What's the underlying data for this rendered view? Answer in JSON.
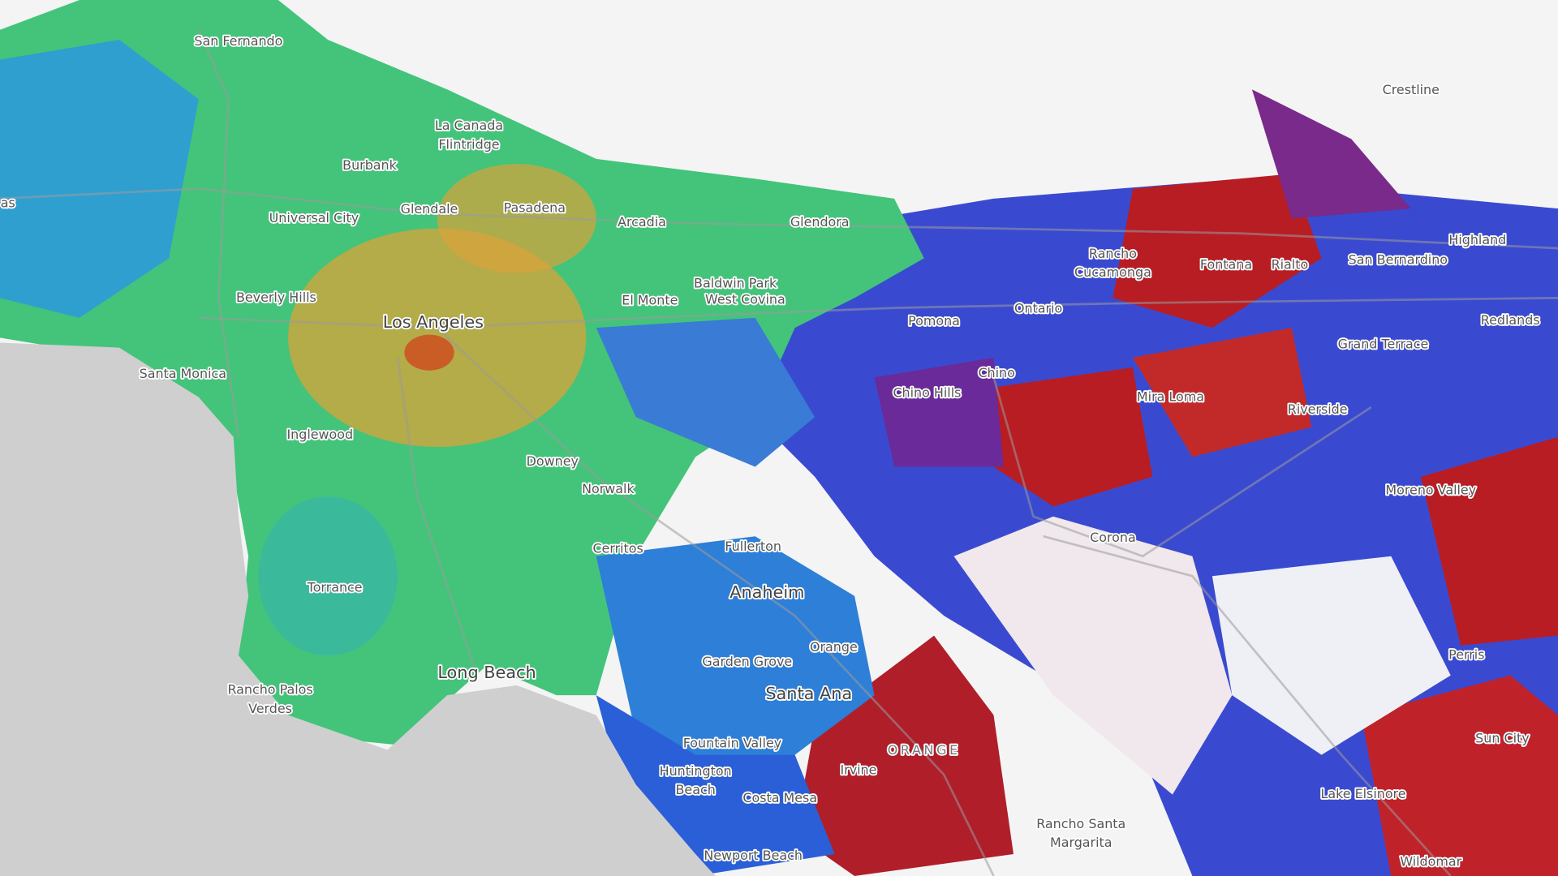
{
  "places": [
    [
      "San Fernando"
    ],
    [
      "Burbank"
    ],
    [
      "La Canada",
      "Flintridge"
    ],
    [
      "Glendale"
    ],
    [
      "Pasadena"
    ],
    [
      "Universal City"
    ],
    [
      "Arcadia"
    ],
    [
      "Glendora"
    ],
    [
      "Beverly Hills"
    ],
    [
      "Los Angeles"
    ],
    [
      "Baldwin Park"
    ],
    [
      "El Monte"
    ],
    [
      "West Covina"
    ],
    [
      "Pomona"
    ],
    [
      "Ontario"
    ],
    [
      "Rancho",
      "Cucamonga"
    ],
    [
      "Fontana"
    ],
    [
      "Rialto"
    ],
    [
      "San Bernardino"
    ],
    [
      "Highland"
    ],
    [
      "Redlands"
    ],
    [
      "Crestline"
    ],
    [
      "Grand Terrace"
    ],
    [
      "Santa Monica"
    ],
    [
      "Chino"
    ],
    [
      "Chino Hills"
    ],
    [
      "Mira Loma"
    ],
    [
      "Riverside"
    ],
    [
      "Inglewood"
    ],
    [
      "Downey"
    ],
    [
      "Norwalk"
    ],
    [
      "Moreno Valley"
    ],
    [
      "Corona"
    ],
    [
      "Cerritos"
    ],
    [
      "Fullerton"
    ],
    [
      "Torrance"
    ],
    [
      "Anaheim"
    ],
    [
      "Orange"
    ],
    [
      "Garden Grove"
    ],
    [
      "Perris"
    ],
    [
      "Long Beach"
    ],
    [
      "Rancho Palos",
      "Verdes"
    ],
    [
      "Santa Ana"
    ],
    [
      "Fountain Valley"
    ],
    [
      "ORANGE"
    ],
    [
      "Sun City"
    ],
    [
      "Irvine"
    ],
    [
      "Huntington",
      "Beach"
    ],
    [
      "Lake Elsinore"
    ],
    [
      "Costa Mesa"
    ],
    [
      "Rancho Santa",
      "Margarita"
    ],
    [
      "Newport Beach"
    ],
    [
      "Wildomar"
    ],
    [
      "as"
    ]
  ]
}
